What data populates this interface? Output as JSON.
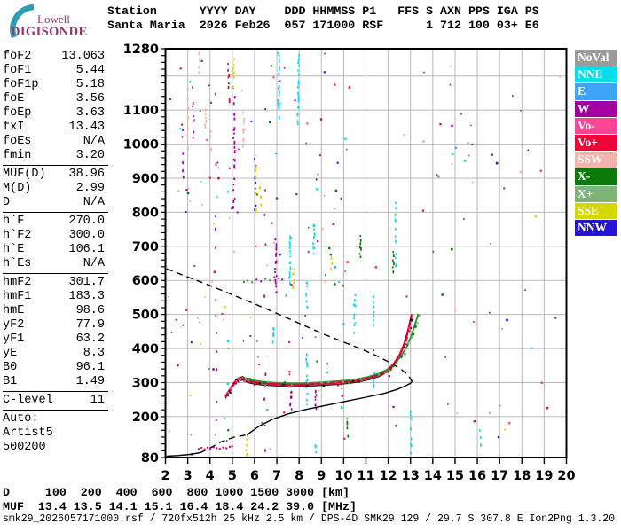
{
  "logo": {
    "line1": "Lowell",
    "line2": "DIGISONDE",
    "arc_color": "#2E9FB0",
    "text_color": "#993366"
  },
  "header": {
    "line1": "Station      YYYY DAY    DDD HHMMSS P1   FFS S AXN PPS IGA PS",
    "line2": "Santa Maria  2026 Feb26  057 171000 RSF      1 712 100 03+ E6"
  },
  "panel": {
    "groups": [
      {
        "rows": [
          [
            "foF2",
            "13.063"
          ],
          [
            "foF1",
            "5.44"
          ],
          [
            "foF1p",
            "5.18"
          ],
          [
            "foE",
            "3.56"
          ],
          [
            "foEp",
            "3.63"
          ],
          [
            "fxI",
            "13.43"
          ],
          [
            "foEs",
            "N/A"
          ],
          [
            "fmin",
            "3.20"
          ]
        ]
      },
      {
        "rows": [
          [
            "MUF(D)",
            "38.96"
          ],
          [
            "M(D)",
            "2.99"
          ],
          [
            "D",
            "N/A"
          ]
        ]
      },
      {
        "rows": [
          [
            "h`F",
            "270.0"
          ],
          [
            "h`F2",
            "300.0"
          ],
          [
            "h`E",
            "106.1"
          ],
          [
            "h`Es",
            "N/A"
          ]
        ]
      },
      {
        "rows": [
          [
            "hmF2",
            "301.7"
          ],
          [
            "hmF1",
            "183.3"
          ],
          [
            "hmE",
            "98.6"
          ],
          [
            "yF2",
            "77.9"
          ],
          [
            "yF1",
            "63.2"
          ],
          [
            "yE",
            "8.3"
          ],
          [
            "B0",
            "96.1"
          ],
          [
            "B1",
            "1.49"
          ]
        ]
      },
      {
        "rows": [
          [
            "C-level",
            "11"
          ]
        ]
      }
    ],
    "footer": [
      "Auto:",
      "Artist5",
      "500200"
    ]
  },
  "legend": {
    "items": [
      {
        "label": "NoVal",
        "color": "#9B9B9B"
      },
      {
        "label": "NNE",
        "color": "#00DFEF"
      },
      {
        "label": "E",
        "color": "#3FA3F6"
      },
      {
        "label": "W",
        "color": "#A300A3"
      },
      {
        "label": "Vo-",
        "color": "#FB4696"
      },
      {
        "label": "Vo+",
        "color": "#F20237"
      },
      {
        "label": "SSW",
        "color": "#F4B4AB"
      },
      {
        "label": "X-",
        "color": "#0A7A0A"
      },
      {
        "label": "X+",
        "color": "#7FB377"
      },
      {
        "label": "SSE",
        "color": "#D6D600"
      },
      {
        "label": "NNW",
        "color": "#2613D6"
      }
    ]
  },
  "chart_data": {
    "type": "ionogram",
    "x_axis": {
      "unit": "MHz",
      "min": 2,
      "max": 20,
      "ticks": [
        2,
        3,
        4,
        5,
        6,
        7,
        8,
        9,
        10,
        11,
        12,
        13,
        14,
        15,
        16,
        17,
        18,
        19,
        20
      ]
    },
    "y_axis": {
      "unit": "km",
      "min": 80,
      "max": 1280,
      "tick_labels": [
        1280,
        1100,
        1000,
        900,
        800,
        700,
        600,
        500,
        400,
        300,
        200,
        80
      ],
      "gridlines": [
        200,
        300,
        400,
        500,
        600,
        700,
        800,
        900,
        1000,
        1100,
        1200
      ],
      "minor_tick_step": 20
    },
    "grid_color": "#b8b8b8",
    "series": [
      {
        "name": "o-mode-echo-trace",
        "type": "trace",
        "color": "#E60238",
        "points": [
          [
            4.69,
            258
          ],
          [
            4.78,
            268
          ],
          [
            4.9,
            280
          ],
          [
            5.05,
            296
          ],
          [
            5.17,
            306
          ],
          [
            5.3,
            313
          ],
          [
            5.42,
            315
          ],
          [
            5.55,
            309
          ],
          [
            5.75,
            304
          ],
          [
            6.05,
            300
          ],
          [
            6.5,
            297
          ],
          [
            7.0,
            295
          ],
          [
            7.6,
            293
          ],
          [
            8.2,
            294
          ],
          [
            8.9,
            296
          ],
          [
            9.6,
            299
          ],
          [
            10.2,
            302
          ],
          [
            10.7,
            307
          ],
          [
            11.2,
            314
          ],
          [
            11.6,
            323
          ],
          [
            11.95,
            336
          ],
          [
            12.25,
            355
          ],
          [
            12.5,
            380
          ],
          [
            12.7,
            410
          ],
          [
            12.85,
            442
          ],
          [
            12.95,
            470
          ],
          [
            13.02,
            490
          ],
          [
            13.06,
            500
          ]
        ]
      },
      {
        "name": "x-mode-echo-trace",
        "type": "trace",
        "color": "#2F9632",
        "points": [
          [
            5.25,
            310
          ],
          [
            5.45,
            316
          ],
          [
            5.65,
            312
          ],
          [
            5.9,
            307
          ],
          [
            6.3,
            303
          ],
          [
            6.8,
            300
          ],
          [
            7.4,
            298
          ],
          [
            8.1,
            298
          ],
          [
            8.8,
            300
          ],
          [
            9.5,
            303
          ],
          [
            10.1,
            306
          ],
          [
            10.6,
            310
          ],
          [
            11.1,
            317
          ],
          [
            11.55,
            326
          ],
          [
            11.95,
            338
          ],
          [
            12.3,
            356
          ],
          [
            12.6,
            380
          ],
          [
            12.85,
            408
          ],
          [
            13.05,
            440
          ],
          [
            13.2,
            470
          ],
          [
            13.3,
            492
          ],
          [
            13.35,
            502
          ]
        ]
      },
      {
        "name": "e-region-echo-dots",
        "type": "dots",
        "color": "#E60238",
        "points": [
          [
            3.45,
            108
          ],
          [
            3.58,
            111
          ],
          [
            3.72,
            107
          ],
          [
            3.85,
            112
          ],
          [
            3.98,
            109
          ],
          [
            4.12,
            113
          ],
          [
            4.26,
            110
          ],
          [
            4.4,
            108
          ],
          [
            4.55,
            112
          ],
          [
            4.7,
            110
          ],
          [
            4.85,
            114
          ],
          [
            4.95,
            116
          ]
        ]
      },
      {
        "name": "spread-echo-dots",
        "type": "dots",
        "color": "#2F9632",
        "points": [
          [
            5.48,
            598
          ],
          [
            5.65,
            602
          ],
          [
            5.85,
            597
          ],
          [
            6.05,
            605
          ],
          [
            6.25,
            600
          ],
          [
            6.45,
            607
          ],
          [
            6.65,
            603
          ],
          [
            6.85,
            612
          ],
          [
            7.05,
            608
          ],
          [
            7.2,
            605
          ]
        ]
      },
      {
        "name": "profile-e-region",
        "type": "line",
        "dashed": false,
        "color": "#000000",
        "points": [
          [
            2.05,
            84
          ],
          [
            2.6,
            86
          ],
          [
            3.1,
            89
          ],
          [
            3.56,
            94
          ]
        ]
      },
      {
        "name": "profile-valley",
        "type": "line",
        "dashed": true,
        "color": "#000000",
        "points": [
          [
            3.56,
            94
          ],
          [
            4.0,
            108
          ],
          [
            4.5,
            126
          ],
          [
            5.1,
            140
          ],
          [
            5.65,
            146
          ]
        ]
      },
      {
        "name": "profile-f-region",
        "type": "line",
        "dashed": false,
        "color": "#000000",
        "points": [
          [
            5.65,
            146
          ],
          [
            6.2,
            172
          ],
          [
            6.8,
            192
          ],
          [
            7.5,
            208
          ],
          [
            8.3,
            221
          ],
          [
            9.2,
            233
          ],
          [
            10.1,
            245
          ],
          [
            11.0,
            257
          ],
          [
            11.8,
            268
          ],
          [
            12.4,
            280
          ],
          [
            12.8,
            291
          ],
          [
            13.0,
            298
          ],
          [
            13.07,
            303
          ]
        ]
      },
      {
        "name": "muf-transmission-curve",
        "type": "line",
        "dashed": true,
        "color": "#000000",
        "points": [
          [
            2.06,
            634
          ],
          [
            3.0,
            610
          ],
          [
            4.0,
            585
          ],
          [
            5.0,
            558
          ],
          [
            6.0,
            531
          ],
          [
            7.0,
            503
          ],
          [
            8.0,
            474
          ],
          [
            9.0,
            445
          ],
          [
            10.0,
            419
          ],
          [
            10.8,
            398
          ],
          [
            11.5,
            378
          ],
          [
            12.1,
            358
          ],
          [
            12.6,
            338
          ],
          [
            12.9,
            321
          ],
          [
            13.07,
            303
          ]
        ]
      }
    ],
    "noise_streaks": [
      {
        "f": 7.05,
        "km": [
          1080,
          1280
        ],
        "c": "NNE",
        "n": 26
      },
      {
        "f": 7.93,
        "km": [
          1055,
          1275
        ],
        "c": "NNE",
        "n": 22
      },
      {
        "f": 7.56,
        "km": [
          595,
          735
        ],
        "c": "NNE",
        "n": 16
      },
      {
        "f": 8.31,
        "km": [
          510,
          600
        ],
        "c": "NNE",
        "n": 10
      },
      {
        "f": 8.63,
        "km": [
          650,
          770
        ],
        "c": "NNE",
        "n": 12
      },
      {
        "f": 8.31,
        "km": [
          240,
          385
        ],
        "c": "NNE",
        "n": 14
      },
      {
        "f": 6.82,
        "km": [
          420,
          465
        ],
        "c": "NNE",
        "n": 6
      },
      {
        "f": 10.45,
        "km": [
          455,
          560
        ],
        "c": "NNE",
        "n": 10
      },
      {
        "f": 11.32,
        "km": [
          275,
          330
        ],
        "c": "NNE",
        "n": 7
      },
      {
        "f": 11.32,
        "km": [
          470,
          550
        ],
        "c": "NNE",
        "n": 8
      },
      {
        "f": 12.3,
        "km": [
          640,
          830
        ],
        "c": "NNE",
        "n": 14
      },
      {
        "f": 13.0,
        "km": [
          85,
          240
        ],
        "c": "NNE",
        "n": 12
      },
      {
        "f": 8.7,
        "km": [
          82,
          130
        ],
        "c": "NNE",
        "n": 6
      },
      {
        "f": 16.1,
        "km": [
          90,
          180
        ],
        "c": "NNE",
        "n": 6
      },
      {
        "f": 4.25,
        "km": [
          95,
          1150
        ],
        "c": "W",
        "n": 22
      },
      {
        "f": 5.05,
        "km": [
          820,
          1140
        ],
        "c": "W",
        "n": 30
      },
      {
        "f": 6.92,
        "km": [
          565,
          720
        ],
        "c": "W",
        "n": 18
      },
      {
        "f": 7.6,
        "km": [
          225,
          280
        ],
        "c": "W",
        "n": 8
      },
      {
        "f": 8.72,
        "km": [
          225,
          280
        ],
        "c": "W",
        "n": 7
      },
      {
        "f": 6.44,
        "km": [
          100,
          1100
        ],
        "c": "W",
        "n": 14
      },
      {
        "f": 2.74,
        "km": [
          890,
          1060
        ],
        "c": "W",
        "n": 9
      },
      {
        "f": 3.21,
        "km": [
          1020,
          1175
        ],
        "c": "W",
        "n": 8
      },
      {
        "f": 4.81,
        "km": [
          1125,
          1245
        ],
        "c": "Vo+",
        "n": 12
      },
      {
        "f": 3.77,
        "km": [
          1050,
          1115
        ],
        "c": "SSW",
        "n": 9
      },
      {
        "f": 3.49,
        "km": [
          1215,
          1280
        ],
        "c": "SSW",
        "n": 8
      },
      {
        "f": 4.01,
        "km": [
          985,
          1040
        ],
        "c": "SSW",
        "n": 7
      },
      {
        "f": 5.48,
        "km": [
          990,
          1105
        ],
        "c": "SSW",
        "n": 12
      },
      {
        "f": 2.98,
        "km": [
          995,
          1200
        ],
        "c": "SSW",
        "n": 8
      },
      {
        "f": 6.0,
        "km": [
          775,
          955
        ],
        "c": "NNW",
        "n": 12
      },
      {
        "f": 6.02,
        "km": [
          790,
          940
        ],
        "c": "SSE",
        "n": 10
      },
      {
        "f": 5.02,
        "km": [
          1170,
          1250
        ],
        "c": "SSE",
        "n": 8
      },
      {
        "f": 6.22,
        "km": [
          820,
          890
        ],
        "c": "SSE",
        "n": 7
      },
      {
        "f": 7.72,
        "km": [
          585,
          645
        ],
        "c": "SSE",
        "n": 7
      },
      {
        "f": 9.42,
        "km": [
          630,
          665
        ],
        "c": "SSE",
        "n": 5
      },
      {
        "f": 5.62,
        "km": [
          82,
          140
        ],
        "c": "SSE",
        "n": 7
      },
      {
        "f": 10.72,
        "km": [
          675,
          735
        ],
        "c": "X-",
        "n": 8
      },
      {
        "f": 12.2,
        "km": [
          625,
          680
        ],
        "c": "X-",
        "n": 6
      },
      {
        "f": 10.15,
        "km": [
          140,
          215
        ],
        "c": "X-",
        "n": 7
      }
    ],
    "speckle": {
      "count": 210,
      "seed": 20260577,
      "palette": [
        "Vo+",
        "Vo+",
        "Vo+",
        "X-",
        "X-",
        "X-",
        "W",
        "W",
        "Vo-",
        "Vo-",
        "SSW",
        "SSW",
        "NNW",
        "SSE",
        "NNE",
        "E",
        "X+"
      ]
    }
  },
  "bottom": {
    "d_row": "D     100  200  400  600  800 1000 1500 3000 [km]",
    "muf_row": "MUF  13.4 13.5 14.1 15.1 16.4 18.4 24.2 39.0 [MHz]",
    "status": "smk29_2026057171000.rsf / 720fx512h 25 kHz 2.5 km / DPS-4D SMK29 129 / 29.7 S 307.8 E Ion2Png 1.3.20"
  }
}
